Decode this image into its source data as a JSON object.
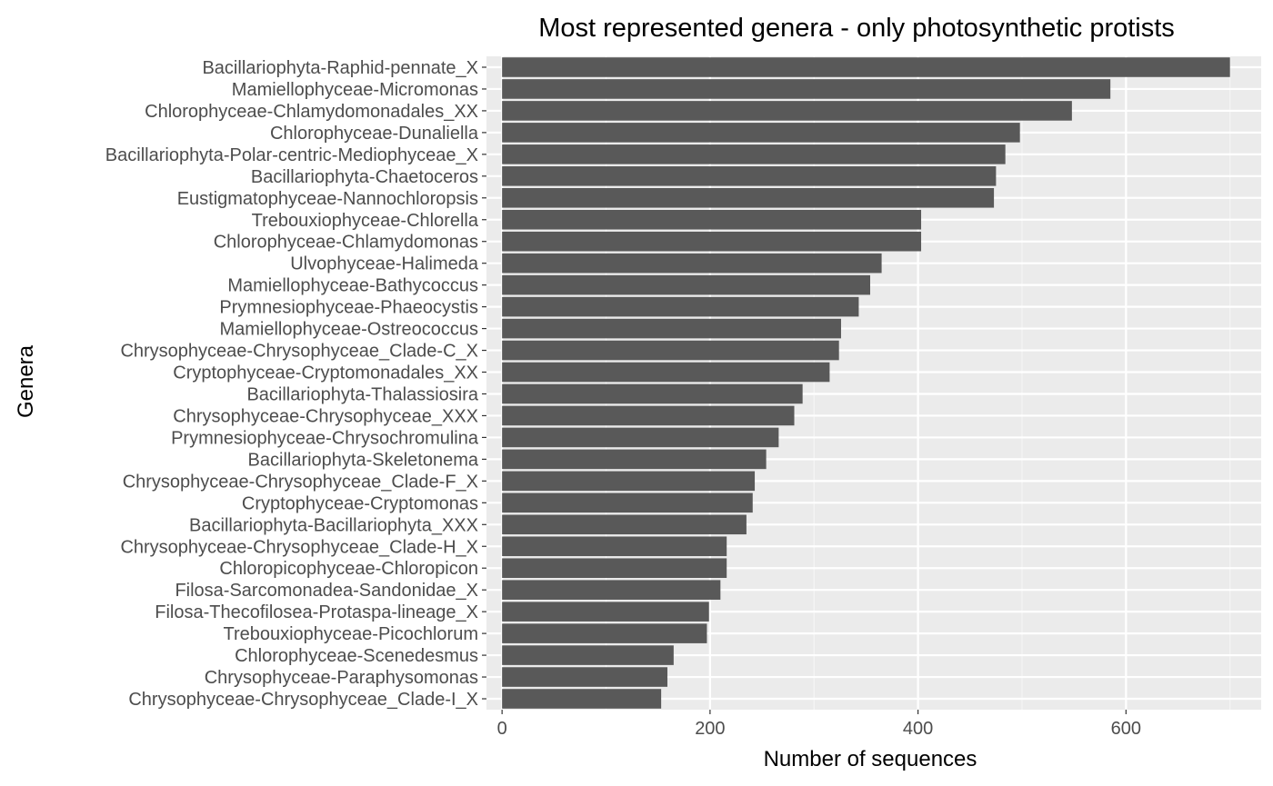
{
  "chart_data": {
    "type": "bar",
    "orientation": "horizontal",
    "title": "Most represented genera - only photosynthetic protists",
    "xlabel": "Number of sequences",
    "ylabel": "Genera",
    "xlim": [
      -15,
      730
    ],
    "xticks": [
      0,
      200,
      400,
      600
    ],
    "xtick_labels": [
      "0",
      "200",
      "400",
      "600"
    ],
    "grid": true,
    "legend": "none",
    "colors": {
      "bar": "#595959",
      "panel": "#ebebeb",
      "grid_major": "#ffffff",
      "grid_minor": "#f5f5f5"
    },
    "categories": [
      "Bacillariophyta-Raphid-pennate_X",
      "Mamiellophyceae-Micromonas",
      "Chlorophyceae-Chlamydomonadales_XX",
      "Chlorophyceae-Dunaliella",
      "Bacillariophyta-Polar-centric-Mediophyceae_X",
      "Bacillariophyta-Chaetoceros",
      "Eustigmatophyceae-Nannochloropsis",
      "Trebouxiophyceae-Chlorella",
      "Chlorophyceae-Chlamydomonas",
      "Ulvophyceae-Halimeda",
      "Mamiellophyceae-Bathycoccus",
      "Prymnesiophyceae-Phaeocystis",
      "Mamiellophyceae-Ostreococcus",
      "Chrysophyceae-Chrysophyceae_Clade-C_X",
      "Cryptophyceae-Cryptomonadales_XX",
      "Bacillariophyta-Thalassiosira",
      "Chrysophyceae-Chrysophyceae_XXX",
      "Prymnesiophyceae-Chrysochromulina",
      "Bacillariophyta-Skeletonema",
      "Chrysophyceae-Chrysophyceae_Clade-F_X",
      "Cryptophyceae-Cryptomonas",
      "Bacillariophyta-Bacillariophyta_XXX",
      "Chrysophyceae-Chrysophyceae_Clade-H_X",
      "Chloropicophyceae-Chloropicon",
      "Filosa-Sarcomonadea-Sandonidae_X",
      "Filosa-Thecofilosea-Protaspa-lineage_X",
      "Trebouxiophyceae-Picochlorum",
      "Chlorophyceae-Scenedesmus",
      "Chrysophyceae-Paraphysomonas",
      "Chrysophyceae-Chrysophyceae_Clade-I_X"
    ],
    "values": [
      700,
      585,
      548,
      498,
      484,
      475,
      473,
      403,
      403,
      365,
      354,
      343,
      326,
      324,
      315,
      289,
      281,
      266,
      254,
      243,
      241,
      235,
      216,
      216,
      210,
      199,
      197,
      165,
      159,
      153
    ]
  }
}
